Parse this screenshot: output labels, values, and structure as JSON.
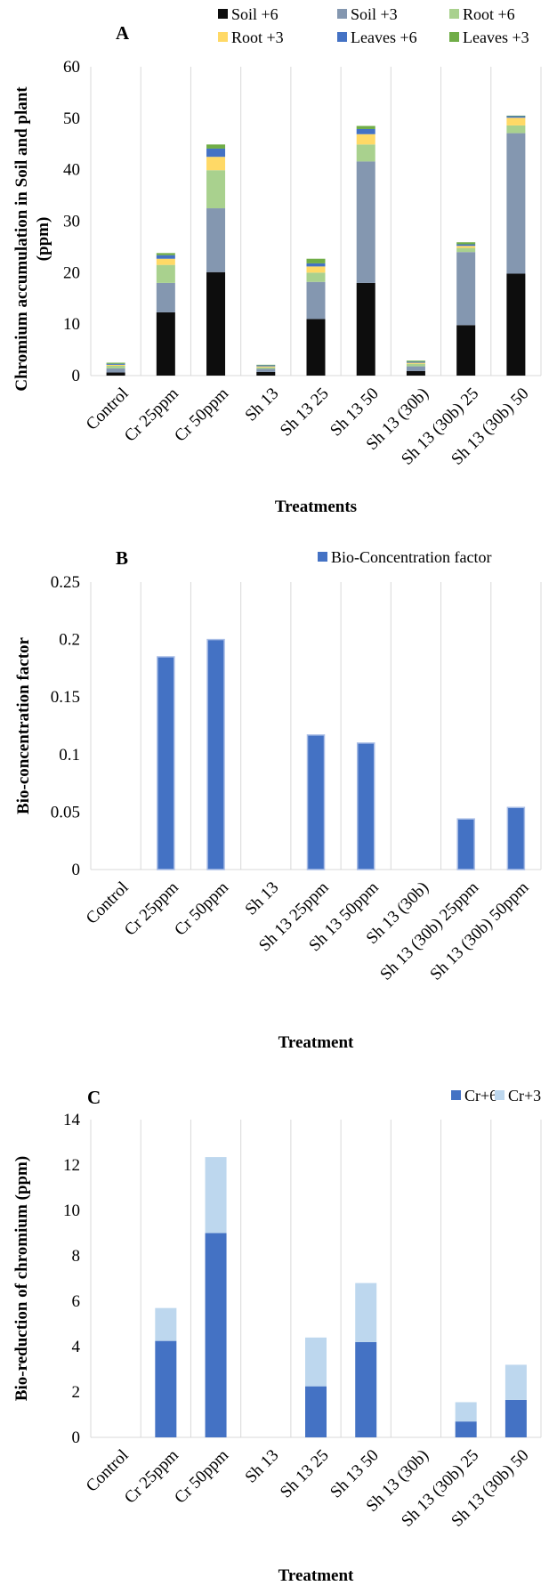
{
  "chart_data": [
    {
      "type": "bar",
      "stacked": true,
      "title": "A",
      "xlabel": "Treatments",
      "ylabel": "Chromium accumulation in Soil and plant (ppm)",
      "ylim": [
        0,
        60
      ],
      "yticks": [
        "0",
        "10",
        "20",
        "30",
        "40",
        "50",
        "60"
      ],
      "grid": "vertical",
      "legend_position": "top",
      "categories": [
        "Control",
        "Cr 25ppm",
        "Cr 50ppm",
        "Sh 13",
        "Sh 13 25",
        "Sh 13 50",
        "Sh 13 (30b)",
        "Sh 13 (30b) 25",
        "Sh 13 (30b) 50"
      ],
      "series": [
        {
          "name": "Soil +6",
          "color": "#0d0d0d",
          "values": [
            0.6,
            12.3,
            20.1,
            0.7,
            11.0,
            18.0,
            0.9,
            9.8,
            19.8
          ]
        },
        {
          "name": "Soil +3",
          "color": "#8497b0",
          "values": [
            0.8,
            5.7,
            12.4,
            0.6,
            7.2,
            23.6,
            0.9,
            14.2,
            27.3
          ]
        },
        {
          "name": "Root +6",
          "color": "#a9d18e",
          "values": [
            0.5,
            3.5,
            7.4,
            0.3,
            1.8,
            3.3,
            0.5,
            0.8,
            1.5
          ]
        },
        {
          "name": "Root +3",
          "color": "#ffd966",
          "values": [
            0.2,
            1.2,
            2.6,
            0.2,
            1.2,
            2.0,
            0.2,
            0.4,
            1.5
          ]
        },
        {
          "name": "Leaves +6",
          "color": "#4472c4",
          "values": [
            0.2,
            0.7,
            1.6,
            0.2,
            0.6,
            1.0,
            0.2,
            0.3,
            0.3
          ]
        },
        {
          "name": "Leaves +3",
          "color": "#70ad47",
          "values": [
            0.2,
            0.4,
            0.8,
            0.1,
            0.9,
            0.6,
            0.2,
            0.4,
            0.1
          ]
        }
      ]
    },
    {
      "type": "bar",
      "title": "B",
      "xlabel": "Treatment",
      "ylabel": "Bio-concentration factor",
      "ylim": [
        0,
        0.25
      ],
      "yticks": [
        "0",
        "0.05",
        "0.1",
        "0.15",
        "0.2",
        "0.25"
      ],
      "grid": "vertical",
      "legend_position": "top-right",
      "categories": [
        "Control",
        "Cr 25ppm",
        "Cr 50ppm",
        "Sh 13",
        "Sh 13 25ppm",
        "Sh 13 50ppm",
        "Sh 13 (30b)",
        "Sh 13 (30b) 25ppm",
        "Sh 13 (30b) 50ppm"
      ],
      "series": [
        {
          "name": "Bio-Concentration factor",
          "color": "#4472c4",
          "values": [
            0,
            0.185,
            0.2,
            0,
            0.117,
            0.11,
            0,
            0.044,
            0.054
          ]
        }
      ]
    },
    {
      "type": "bar",
      "stacked": true,
      "title": "C",
      "xlabel": "Treatment",
      "ylabel": "Bio-reduction of chromium (ppm)",
      "ylim": [
        0,
        14
      ],
      "yticks": [
        "0",
        "2",
        "4",
        "6",
        "8",
        "10",
        "12",
        "14"
      ],
      "grid": "vertical",
      "legend_position": "top-right",
      "categories": [
        "Control",
        "Cr 25ppm",
        "Cr 50ppm",
        "Sh 13",
        "Sh 13 25",
        "Sh 13 50",
        "Sh 13 (30b)",
        "Sh 13 (30b) 25",
        "Sh 13 (30b) 50"
      ],
      "series": [
        {
          "name": "Cr+6",
          "color": "#4472c4",
          "values": [
            0,
            4.25,
            9.0,
            0,
            2.25,
            4.2,
            0,
            0.7,
            1.65
          ]
        },
        {
          "name": "Cr+3",
          "color": "#bdd7ee",
          "values": [
            0,
            1.45,
            3.35,
            0,
            2.15,
            2.6,
            0,
            0.85,
            1.55
          ]
        }
      ]
    }
  ]
}
